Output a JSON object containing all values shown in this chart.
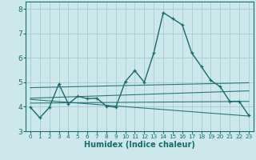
{
  "xlabel": "Humidex (Indice chaleur)",
  "ylabel": "",
  "xlim": [
    -0.5,
    23.5
  ],
  "ylim": [
    3.0,
    8.3
  ],
  "yticks": [
    3,
    4,
    5,
    6,
    7,
    8
  ],
  "xticks": [
    0,
    1,
    2,
    3,
    4,
    5,
    6,
    7,
    8,
    9,
    10,
    11,
    12,
    13,
    14,
    15,
    16,
    17,
    18,
    19,
    20,
    21,
    22,
    23
  ],
  "bg_color": "#cce8ea",
  "grid_color": "#aacfd2",
  "line_color": "#1a6b6b",
  "main_line": [
    [
      0,
      3.98
    ],
    [
      1,
      3.55
    ],
    [
      2,
      3.97
    ],
    [
      3,
      4.93
    ],
    [
      4,
      4.12
    ],
    [
      5,
      4.43
    ],
    [
      6,
      4.33
    ],
    [
      7,
      4.35
    ],
    [
      8,
      4.03
    ],
    [
      9,
      3.98
    ],
    [
      10,
      5.03
    ],
    [
      11,
      5.48
    ],
    [
      12,
      5.0
    ],
    [
      13,
      6.2
    ],
    [
      14,
      7.85
    ],
    [
      15,
      7.6
    ],
    [
      16,
      7.35
    ],
    [
      17,
      6.2
    ],
    [
      18,
      5.65
    ],
    [
      19,
      5.08
    ],
    [
      20,
      4.82
    ],
    [
      21,
      4.22
    ],
    [
      22,
      4.22
    ],
    [
      23,
      3.65
    ]
  ],
  "trend_lines": [
    {
      "x": [
        0,
        23
      ],
      "y": [
        4.78,
        4.98
      ]
    },
    {
      "x": [
        0,
        23
      ],
      "y": [
        4.35,
        4.65
      ]
    },
    {
      "x": [
        0,
        23
      ],
      "y": [
        4.15,
        4.22
      ]
    },
    {
      "x": [
        0,
        23
      ],
      "y": [
        4.3,
        3.62
      ]
    }
  ]
}
